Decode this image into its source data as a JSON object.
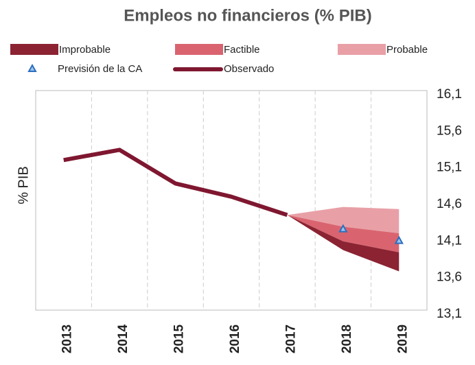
{
  "chart_data": {
    "type": "fan",
    "title": "Empleos no financieros (% PIB)",
    "ylabel": "% PIB",
    "categories": [
      "2013",
      "2014",
      "2015",
      "2016",
      "2017",
      "2018",
      "2019"
    ],
    "bands": [
      {
        "name": "Probable",
        "color": "#e8a0a6",
        "upper": [
          null,
          null,
          null,
          null,
          14.4,
          14.51,
          14.48
        ],
        "lower": [
          null,
          null,
          null,
          null,
          14.4,
          14.24,
          14.15
        ]
      },
      {
        "name": "Factible",
        "color": "#d9646f",
        "upper": [
          null,
          null,
          null,
          null,
          14.4,
          14.24,
          14.15
        ],
        "lower": [
          null,
          null,
          null,
          null,
          14.4,
          14.04,
          13.89
        ]
      },
      {
        "name": "Improbable",
        "color": "#8b2332",
        "upper": [
          null,
          null,
          null,
          null,
          14.4,
          14.04,
          13.89
        ],
        "lower": [
          null,
          null,
          null,
          null,
          14.4,
          13.92,
          13.63
        ]
      }
    ],
    "series": [
      {
        "name": "Observado",
        "color": "#7f1730",
        "values": [
          15.15,
          15.29,
          14.83,
          14.65,
          14.4,
          null,
          null
        ]
      },
      {
        "name": "Previsión de la CA",
        "color": "#2a6fc0",
        "marker": "triangle",
        "values": [
          null,
          null,
          null,
          null,
          null,
          14.21,
          14.05
        ]
      }
    ],
    "ylim": [
      13.1,
      16.1
    ],
    "yticks": [
      {
        "value": 13.1,
        "label": "13,1"
      },
      {
        "value": 13.6,
        "label": "13,6"
      },
      {
        "value": 14.1,
        "label": "14,1"
      },
      {
        "value": 14.6,
        "label": "14,6"
      },
      {
        "value": 15.1,
        "label": "15,1"
      },
      {
        "value": 15.6,
        "label": "15,6"
      },
      {
        "value": 16.1,
        "label": "16,1"
      }
    ],
    "y_axis_side": "right",
    "grid": "x-dashed"
  }
}
